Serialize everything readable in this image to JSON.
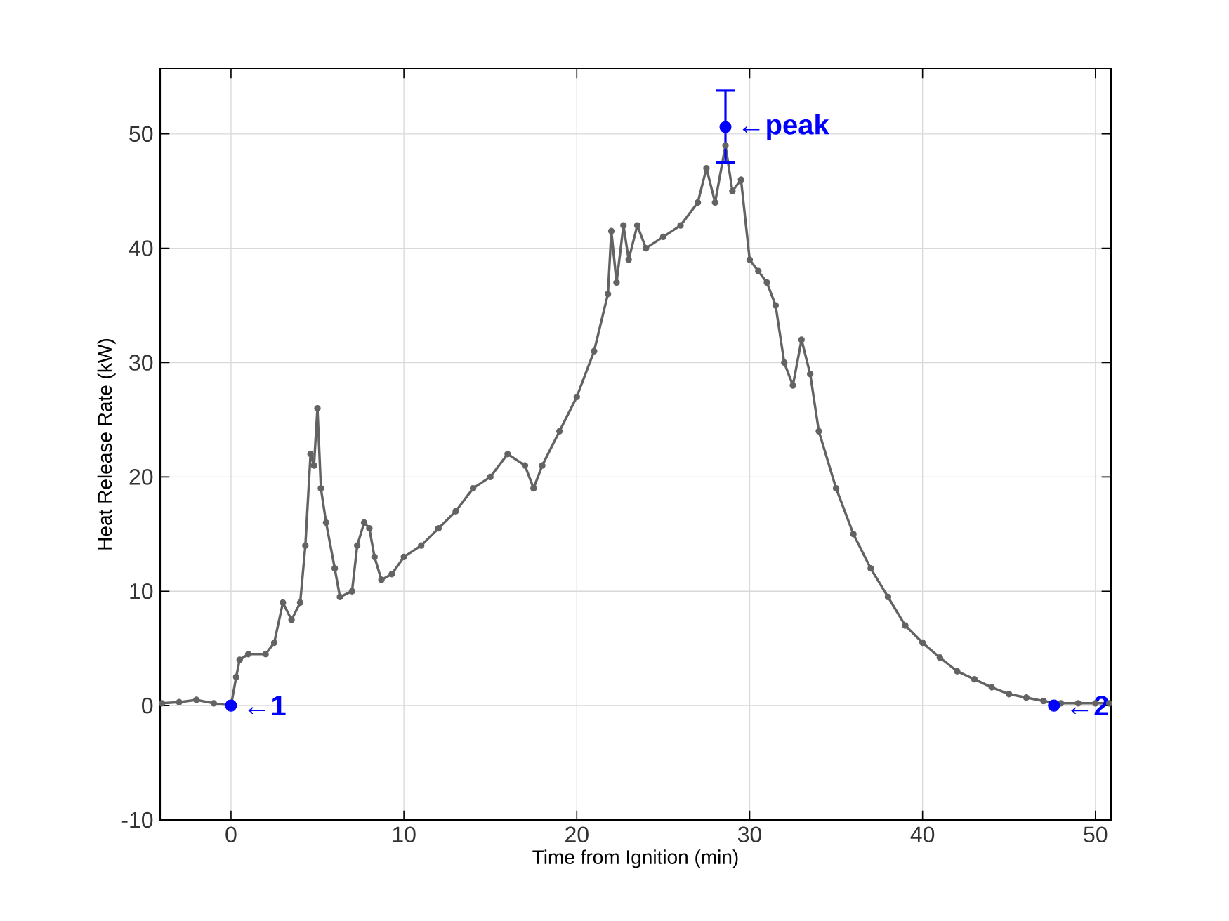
{
  "chart_data": {
    "type": "line",
    "xlabel": "Time from Ignition (min)",
    "ylabel": "Heat Release Rate (kW)",
    "xlim": [
      -4.1,
      50.9
    ],
    "ylim": [
      -10,
      55.7
    ],
    "xticks": [
      0,
      10,
      20,
      30,
      40,
      50
    ],
    "yticks": [
      -10,
      0,
      10,
      20,
      30,
      40,
      50
    ],
    "grid": true,
    "line_style": "solid",
    "series": [
      {
        "color": "#636363",
        "marker": "circle",
        "x": [
          -4,
          -3,
          -2,
          -1,
          0,
          0.3,
          0.5,
          1,
          2,
          2.5,
          3,
          3.5,
          4,
          4.3,
          4.6,
          4.8,
          5.0,
          5.2,
          5.5,
          6,
          6.3,
          7,
          7.3,
          7.7,
          8,
          8.3,
          8.7,
          9.3,
          10,
          11,
          12,
          13,
          14,
          15,
          16,
          17,
          17.5,
          18,
          19,
          20,
          21,
          21.8,
          22,
          22.3,
          22.7,
          23,
          23.5,
          24,
          25,
          26,
          27,
          27.5,
          28,
          28.6,
          29,
          29.5,
          30,
          30.5,
          31,
          31.5,
          32,
          32.5,
          33,
          33.5,
          34,
          35,
          36,
          37,
          38,
          39,
          40,
          41,
          42,
          43,
          44,
          45,
          46,
          47,
          48,
          49,
          50,
          50.8
        ],
        "values": [
          0.2,
          0.3,
          0.5,
          0.2,
          0,
          2.5,
          4.0,
          4.5,
          4.5,
          5.5,
          9,
          7.5,
          9,
          14,
          22,
          21,
          26,
          19,
          16,
          12,
          9.5,
          10,
          14,
          16,
          15.5,
          13,
          11,
          11.5,
          13,
          14,
          15.5,
          17,
          19,
          20,
          22,
          21,
          19,
          21,
          24,
          27,
          31,
          36,
          41.5,
          37,
          42,
          39,
          42,
          40,
          41,
          42,
          44,
          47,
          44,
          49,
          45,
          46,
          39,
          38,
          37,
          35,
          30,
          28,
          32,
          29,
          24,
          19,
          15,
          12,
          9.5,
          7,
          5.5,
          4.2,
          3,
          2.3,
          1.6,
          1,
          0.7,
          0.4,
          0.2,
          0.2,
          0.2,
          0.2
        ]
      },
      {
        "type": "scatter",
        "color": "#0000ff",
        "marker": "circle",
        "x": [
          0,
          28.6,
          47.6
        ],
        "values": [
          0,
          50.6,
          0
        ],
        "errors": [
          null,
          [
            47.5,
            53.8
          ],
          null
        ]
      }
    ],
    "annotations": [
      {
        "text": "←1",
        "x": 0,
        "y": 0
      },
      {
        "text": "←**peak**",
        "x": 28.6,
        "y": 50.6
      },
      {
        "text": "←2",
        "x": 47.6,
        "y": 0
      }
    ]
  }
}
